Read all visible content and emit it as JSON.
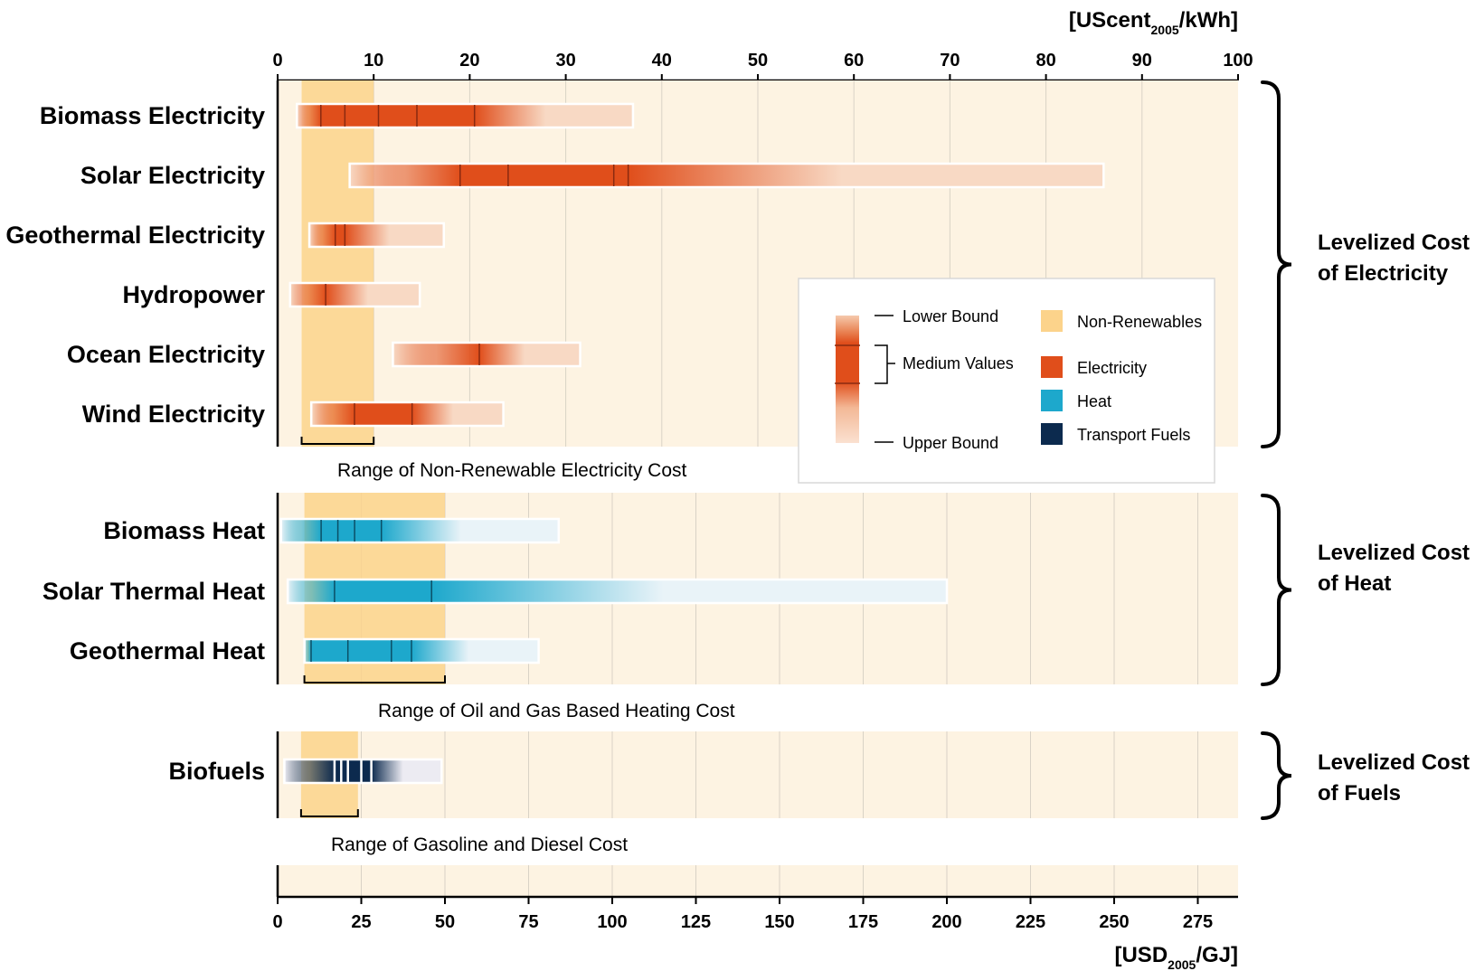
{
  "chart_data": {
    "type": "bar",
    "top_axis": {
      "unit_main": "[UScent",
      "unit_sub": "2005",
      "unit_tail": "/kWh]",
      "ticks": [
        0,
        10,
        20,
        30,
        40,
        50,
        60,
        70,
        80,
        90,
        100
      ],
      "range": [
        0,
        100
      ]
    },
    "bottom_axis": {
      "unit_main": "[USD",
      "unit_sub": "2005",
      "unit_tail": "/GJ]",
      "ticks": [
        0,
        25,
        50,
        75,
        100,
        125,
        150,
        175,
        200,
        225,
        250,
        275
      ],
      "range": [
        0,
        280
      ]
    },
    "groups": [
      {
        "id": "electricity",
        "unit": "UScent/kWh",
        "brace_line1": "Levelized Cost",
        "brace_line2_pre": "of ",
        "brace_line2_bold": "Electricity",
        "nonrenewable_range": [
          2.5,
          10
        ],
        "range_label": "Range of Non-Renewable Electricity Cost",
        "rows": [
          {
            "label": "Biomass Electricity",
            "min": 2,
            "max": 37,
            "medians": [
              4.5,
              7,
              10.5,
              14.5,
              20.5
            ]
          },
          {
            "label": "Solar Electricity",
            "min": 7.5,
            "max": 86,
            "medians": [
              19,
              24,
              35,
              36.5
            ]
          },
          {
            "label": "Geothermal Electricity",
            "min": 3.3,
            "max": 17.3,
            "medians": [
              6,
              7
            ]
          },
          {
            "label": "Hydropower",
            "min": 1.3,
            "max": 14.8,
            "medians": [
              5
            ]
          },
          {
            "label": "Ocean Electricity",
            "min": 12,
            "max": 31.5,
            "medians": [
              21
            ]
          },
          {
            "label": "Wind Electricity",
            "min": 3.5,
            "max": 23.5,
            "medians": [
              8,
              14
            ]
          }
        ]
      },
      {
        "id": "heat",
        "unit": "USD/GJ",
        "brace_line1": "Levelized Cost",
        "brace_line2_pre": "of ",
        "brace_line2_bold": "Heat",
        "nonrenewable_range": [
          8,
          50
        ],
        "range_label": "Range of Oil and Gas Based Heating Cost",
        "rows": [
          {
            "label": "Biomass Heat",
            "min": 1,
            "max": 84,
            "medians": [
              13,
              18,
              23,
              31
            ]
          },
          {
            "label": "Solar Thermal Heat",
            "min": 3,
            "max": 200,
            "medians": [
              17,
              46
            ]
          },
          {
            "label": "Geothermal Heat",
            "min": 8,
            "max": 78,
            "medians": [
              10,
              21,
              34,
              40
            ]
          }
        ]
      },
      {
        "id": "fuels",
        "unit": "USD/GJ",
        "brace_line1": "Levelized Cost",
        "brace_line2_pre": "of ",
        "brace_line2_bold": "Fuels",
        "nonrenewable_range": [
          7,
          24
        ],
        "range_label": "Range of Gasoline and Diesel Cost",
        "rows": [
          {
            "label": "Biofuels",
            "min": 2,
            "max": 49,
            "medians": [
              17,
              19,
              21,
              25,
              28
            ]
          }
        ]
      }
    ],
    "legend": {
      "lower_bound": "Lower Bound",
      "medium_values": "Medium Values",
      "upper_bound": "Upper Bound",
      "categories": [
        {
          "label": "Non-Renewables",
          "color": "#fcd38b"
        },
        {
          "label": "Electricity",
          "color": "#e04e1b"
        },
        {
          "label": "Heat",
          "color": "#1da8cc"
        },
        {
          "label": "Transport Fuels",
          "color": "#0c2a4e"
        }
      ]
    },
    "colors": {
      "panel_bg": "#fdf3e2",
      "grid": "#d9d2c6",
      "electricity": "#e04e1b",
      "electricity_light": "#f8d9c4",
      "heat": "#1da8cc",
      "heat_light": "#e9f3f8",
      "fuels": "#0c2a4e",
      "fuels_light": "#ecebf2",
      "nonrenewable": "#fcd38b"
    }
  }
}
